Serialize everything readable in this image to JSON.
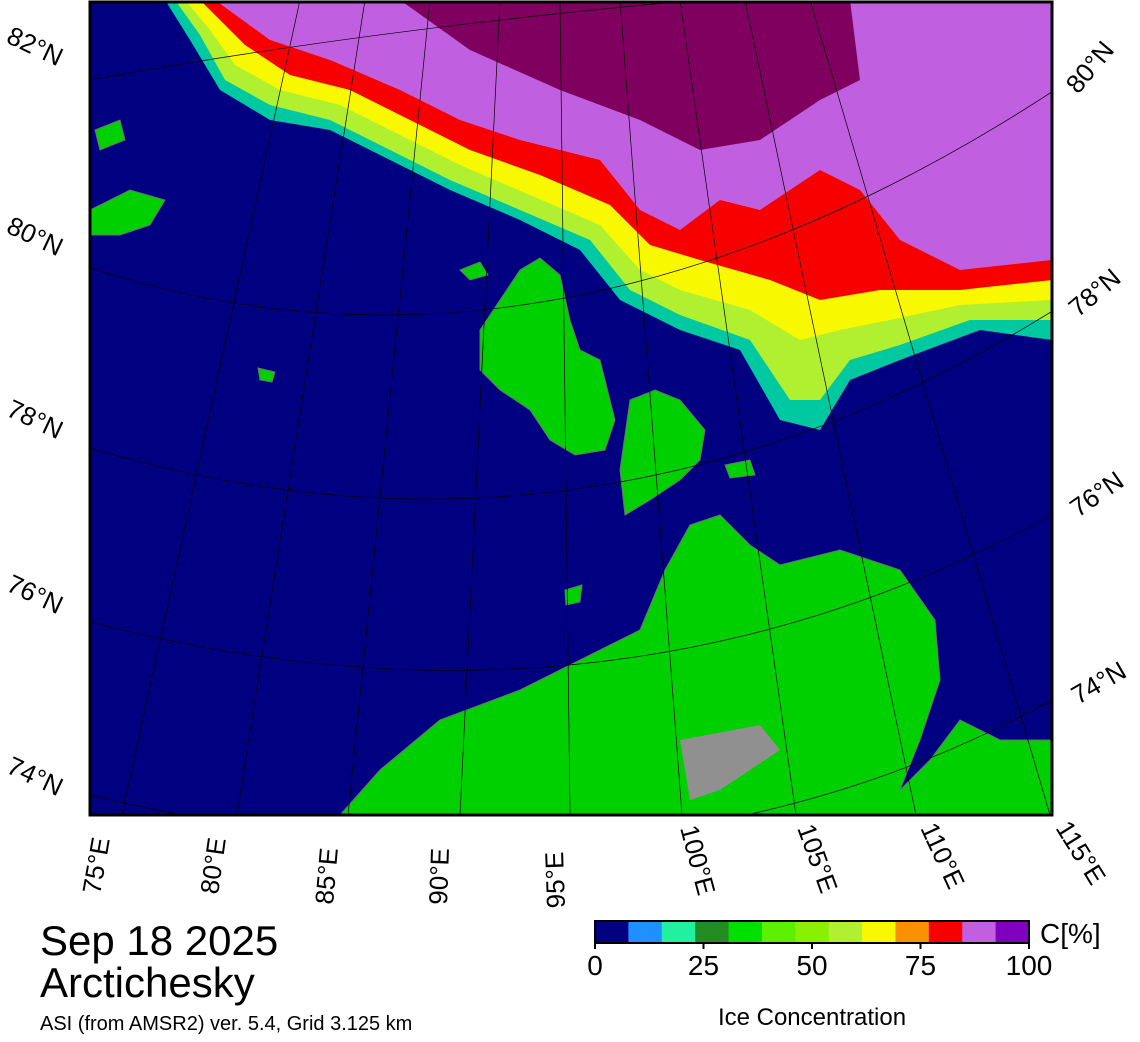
{
  "map": {
    "lat_labels_left": [
      "82°N",
      "80°N",
      "78°N",
      "76°N",
      "74°N"
    ],
    "lat_labels_right": [
      "80°N",
      "78°N",
      "76°N",
      "74°N"
    ],
    "lon_labels": [
      "75°E",
      "80°E",
      "85°E",
      "90°E",
      "95°E",
      "100°E",
      "105°E",
      "110°E",
      "115°E"
    ]
  },
  "info": {
    "date": "Sep 18 2025",
    "region": "Arctichesky",
    "source": "ASI (from AMSR2) ver. 5.4,  Grid 3.125 km"
  },
  "colorbar": {
    "colors": [
      "#000080",
      "#1e90ff",
      "#20f0a0",
      "#228b22",
      "#00e000",
      "#5cf000",
      "#88f000",
      "#b0f030",
      "#f8f800",
      "#f89000",
      "#f80000",
      "#c060e0",
      "#8000c0"
    ],
    "range": [
      0,
      100
    ],
    "ticks": [
      0,
      25,
      50,
      75,
      100
    ],
    "unit": "C[%]",
    "label": "Ice Concentration"
  }
}
